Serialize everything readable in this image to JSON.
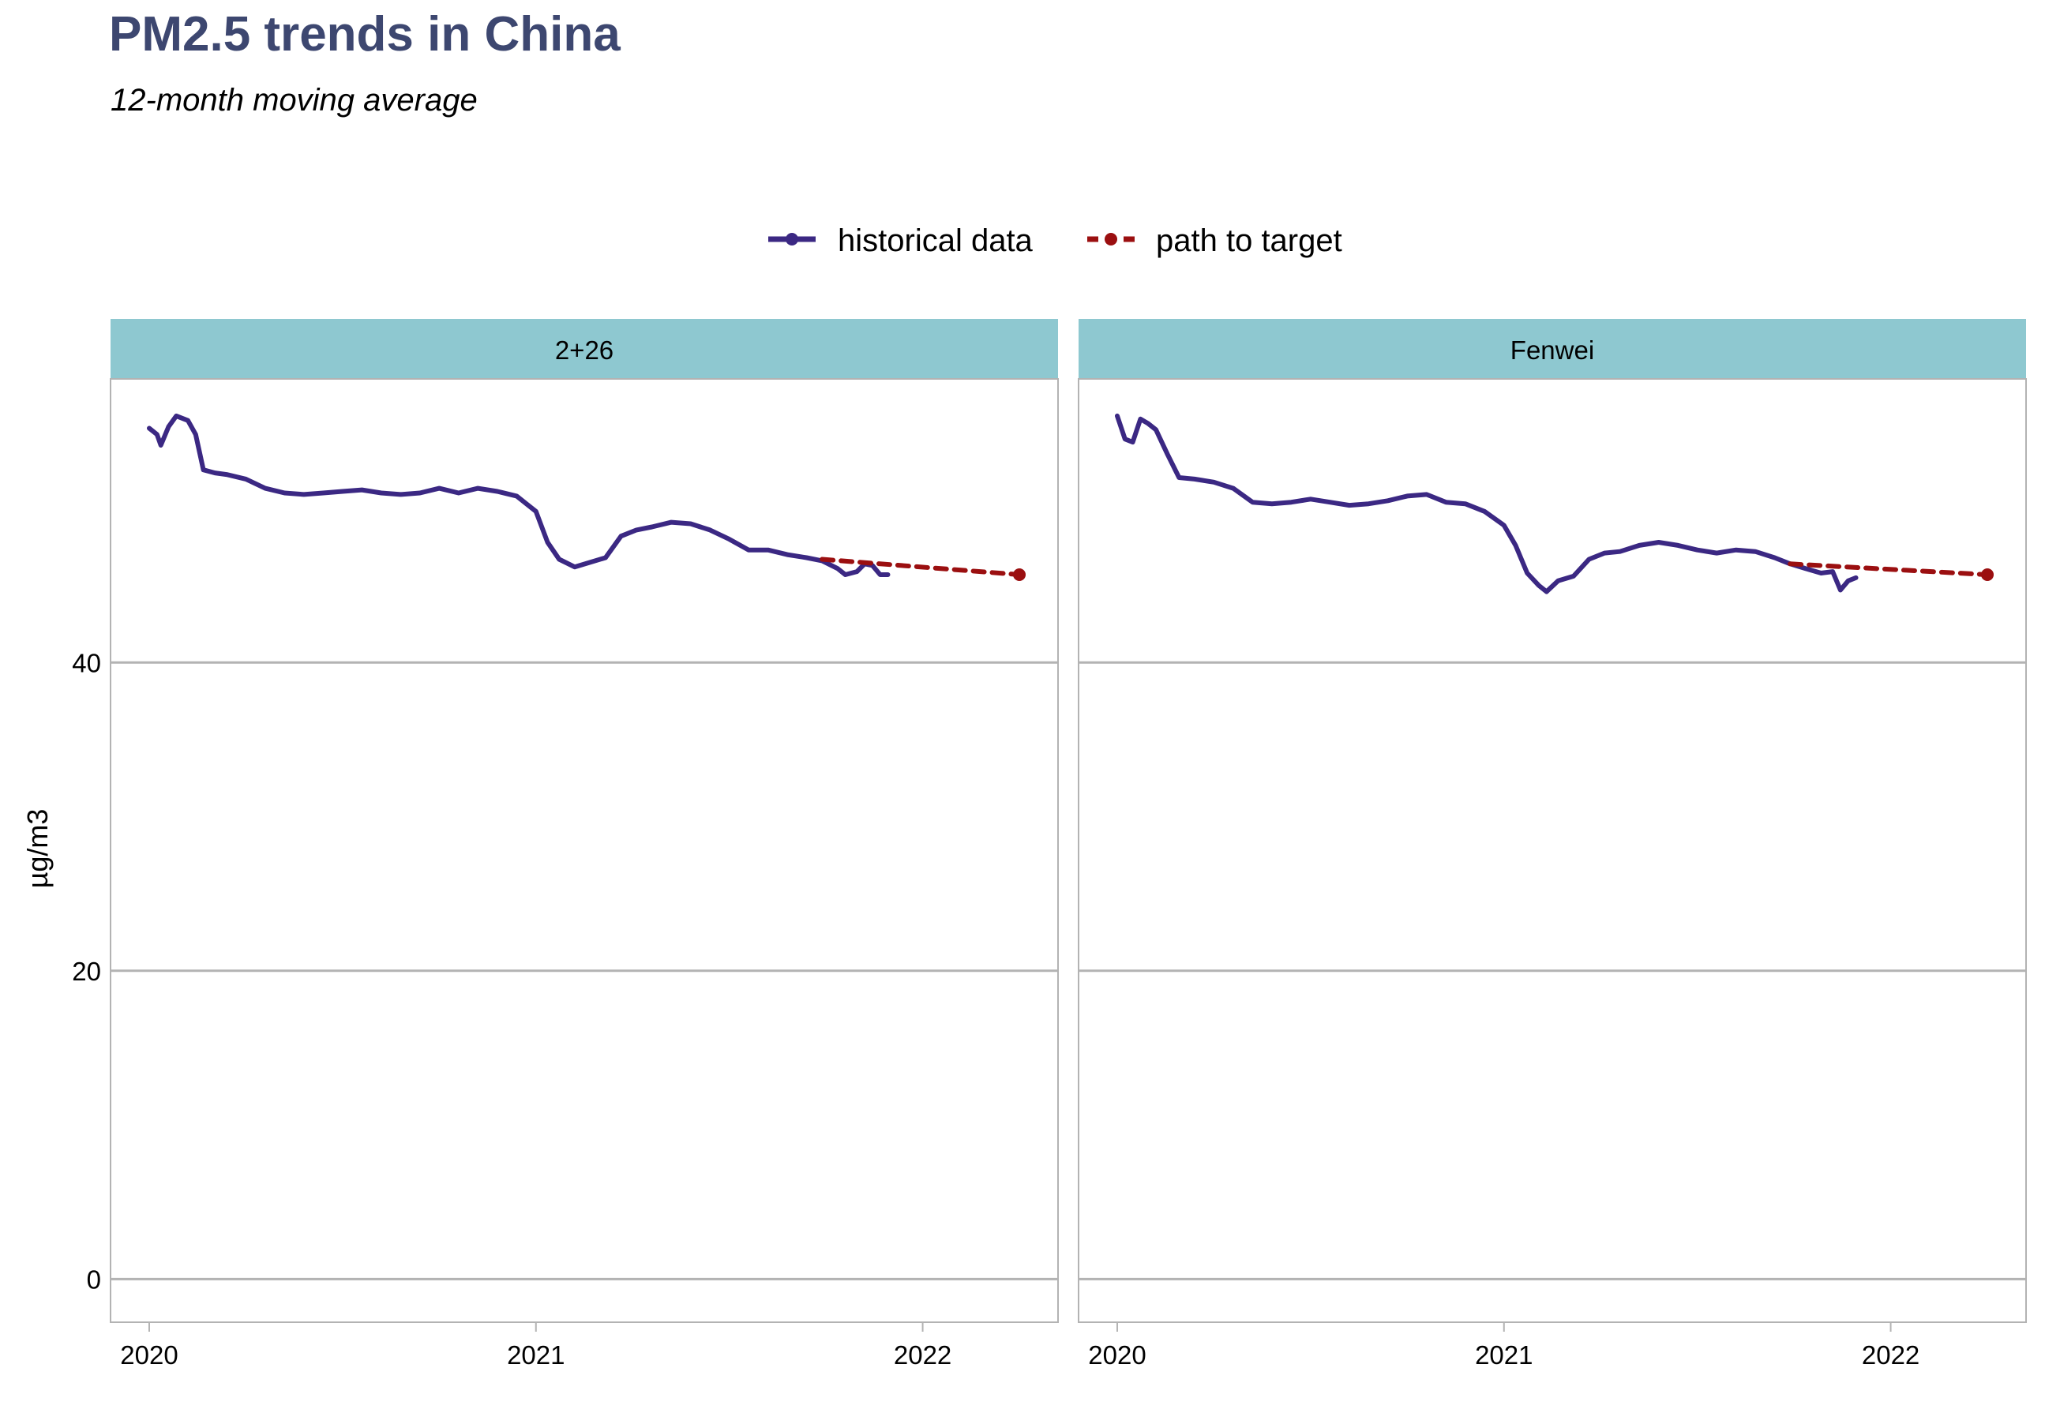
{
  "chart_data": {
    "type": "line",
    "title": "PM2.5 trends in China",
    "subtitle": "12-month moving average",
    "ylabel": "µg/m3",
    "xlabel": "",
    "xlim": [
      2019.9,
      2022.35
    ],
    "ylim": [
      -2.8,
      58.4
    ],
    "yticks": [
      0,
      20,
      40
    ],
    "xticks": [
      2020,
      2021,
      2022
    ],
    "grid": "horizontal-major",
    "legend_position": "top",
    "legend": [
      {
        "label": "historical data",
        "color": "#3b2883",
        "style": "solid"
      },
      {
        "label": "path to target",
        "color": "#9b0f10",
        "style": "dashed"
      }
    ],
    "colors": {
      "historical": "#3b2883",
      "target": "#9b0f10",
      "strip": "#8ec8d0",
      "grid": "#b3b3b3",
      "title": "#3d4770"
    },
    "panels": [
      {
        "strip": "2+26",
        "series": [
          {
            "name": "historical data",
            "x": [
              2020.0,
              2020.02,
              2020.03,
              2020.05,
              2020.07,
              2020.1,
              2020.12,
              2020.14,
              2020.17,
              2020.2,
              2020.25,
              2020.3,
              2020.35,
              2020.4,
              2020.45,
              2020.5,
              2020.55,
              2020.6,
              2020.65,
              2020.7,
              2020.75,
              2020.8,
              2020.85,
              2020.9,
              2020.95,
              2021.0,
              2021.03,
              2021.06,
              2021.1,
              2021.14,
              2021.18,
              2021.22,
              2021.26,
              2021.3,
              2021.35,
              2021.4,
              2021.45,
              2021.5,
              2021.55,
              2021.6,
              2021.65,
              2021.7,
              2021.74,
              2021.78,
              2021.8,
              2021.83,
              2021.85,
              2021.87,
              2021.89,
              2021.91
            ],
            "y": [
              55.2,
              54.8,
              54.1,
              55.3,
              56.0,
              55.7,
              54.8,
              52.5,
              52.3,
              52.2,
              51.9,
              51.3,
              51.0,
              50.9,
              51.0,
              51.1,
              51.2,
              51.0,
              50.9,
              51.0,
              51.3,
              51.0,
              51.3,
              51.1,
              50.8,
              49.8,
              47.8,
              46.7,
              46.2,
              46.5,
              46.8,
              48.2,
              48.6,
              48.8,
              49.1,
              49.0,
              48.6,
              48.0,
              47.3,
              47.3,
              47.0,
              46.8,
              46.6,
              46.1,
              45.7,
              45.9,
              46.4,
              46.3,
              45.7,
              45.7
            ]
          },
          {
            "name": "path to target",
            "x": [
              2021.74,
              2022.25
            ],
            "y": [
              46.7,
              45.7
            ]
          }
        ]
      },
      {
        "strip": "Fenwei",
        "series": [
          {
            "name": "historical data",
            "x": [
              2020.0,
              2020.02,
              2020.04,
              2020.06,
              2020.08,
              2020.1,
              2020.13,
              2020.16,
              2020.2,
              2020.25,
              2020.3,
              2020.35,
              2020.4,
              2020.45,
              2020.5,
              2020.55,
              2020.6,
              2020.65,
              2020.7,
              2020.75,
              2020.8,
              2020.85,
              2020.9,
              2020.95,
              2021.0,
              2021.03,
              2021.06,
              2021.09,
              2021.11,
              2021.14,
              2021.18,
              2021.22,
              2021.26,
              2021.3,
              2021.35,
              2021.4,
              2021.45,
              2021.5,
              2021.55,
              2021.6,
              2021.65,
              2021.7,
              2021.74,
              2021.78,
              2021.82,
              2021.85,
              2021.87,
              2021.89,
              2021.91
            ],
            "y": [
              56.0,
              54.5,
              54.3,
              55.8,
              55.5,
              55.1,
              53.5,
              52.0,
              51.9,
              51.7,
              51.3,
              50.4,
              50.3,
              50.4,
              50.6,
              50.4,
              50.2,
              50.3,
              50.5,
              50.8,
              50.9,
              50.4,
              50.3,
              49.8,
              48.9,
              47.6,
              45.8,
              45.0,
              44.6,
              45.3,
              45.6,
              46.7,
              47.1,
              47.2,
              47.6,
              47.8,
              47.6,
              47.3,
              47.1,
              47.3,
              47.2,
              46.8,
              46.4,
              46.1,
              45.8,
              45.9,
              44.7,
              45.3,
              45.5
            ]
          },
          {
            "name": "path to target",
            "x": [
              2021.74,
              2022.25
            ],
            "y": [
              46.4,
              45.7
            ]
          }
        ]
      }
    ]
  }
}
